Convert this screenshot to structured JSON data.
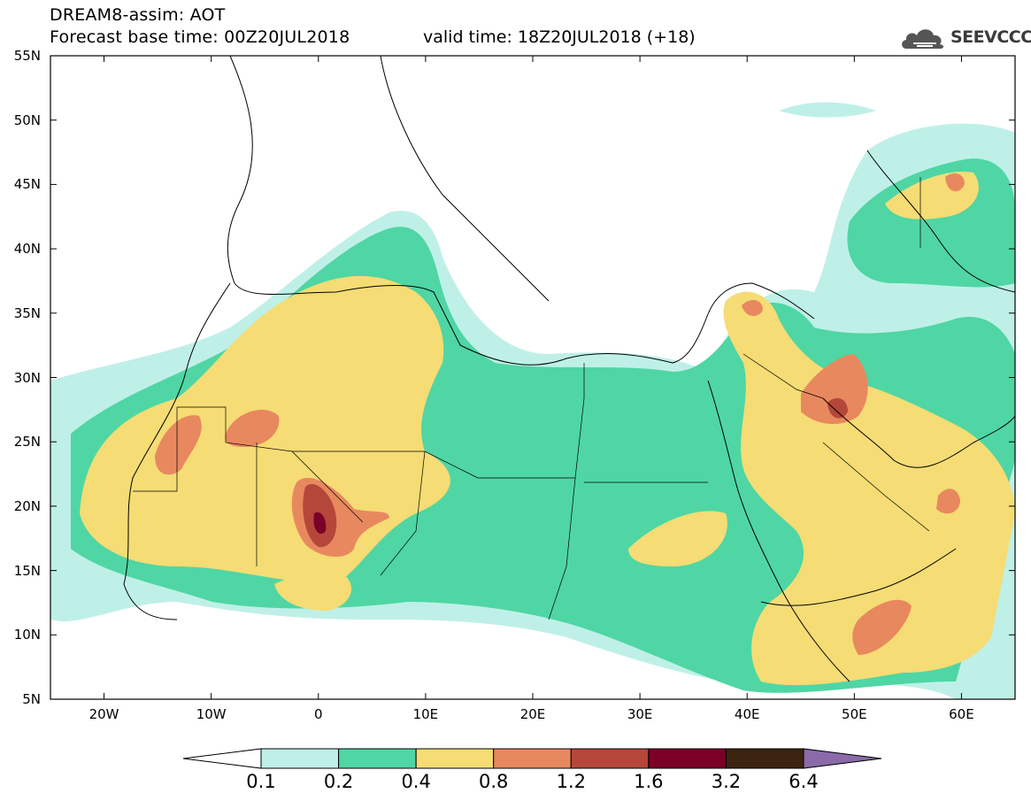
{
  "header": {
    "title_line1": "DREAM8-assim: AOT",
    "title_line2": "Forecast base time: 00Z20JUL2018",
    "valid_time": "valid time: 18Z20JUL2018 (+18)",
    "logo_text": "SEEVCCC"
  },
  "map": {
    "lat_labels": [
      "55N",
      "50N",
      "45N",
      "40N",
      "35N",
      "30N",
      "25N",
      "20N",
      "15N",
      "10N",
      "5N"
    ],
    "lon_labels": [
      "20W",
      "10W",
      "0",
      "10E",
      "20E",
      "30E",
      "40E",
      "50E",
      "60E"
    ],
    "lon_range": [
      -25,
      65
    ],
    "lat_range": [
      5,
      55
    ],
    "background_color": "#ffffff",
    "border_color": "#000000"
  },
  "legend": {
    "labels": [
      "0.1",
      "0.2",
      "0.4",
      "0.8",
      "1.2",
      "1.6",
      "3.2",
      "6.4"
    ],
    "colors": [
      "#ffffff",
      "#bff0e8",
      "#4fd6a4",
      "#f5dc74",
      "#e8885f",
      "#b5473a",
      "#7a0028",
      "#3d2410",
      "#8a6aa8"
    ]
  },
  "icons": {
    "logo": "cloud-logo-icon"
  }
}
